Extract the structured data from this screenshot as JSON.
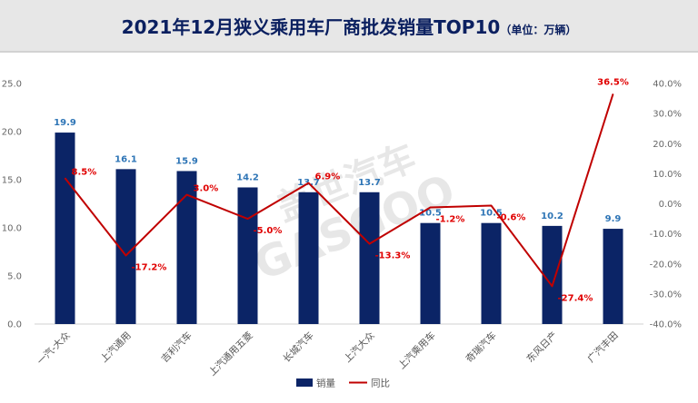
{
  "title": "2021年12月狭义乘用车厂商批发销量TOP10",
  "unit": "（单位：万辆）",
  "watermark": {
    "cn": "盖世汽车",
    "en": "GASGOO"
  },
  "colors": {
    "bar": "#0b2466",
    "line": "#c00000",
    "bar_label": "#2e75b6",
    "line_label": "#e00000"
  },
  "chart_data": {
    "type": "bar",
    "categories": [
      "一汽-大众",
      "上汽通用",
      "吉利汽车",
      "上汽通用五菱",
      "长城汽车",
      "上汽大众",
      "上汽乘用车",
      "奇瑞汽车",
      "东风日产",
      "广汽丰田"
    ],
    "series": [
      {
        "name": "销量",
        "type": "bar",
        "axis": "left",
        "values": [
          19.9,
          16.1,
          15.9,
          14.2,
          13.7,
          13.7,
          10.5,
          10.5,
          10.2,
          9.9
        ],
        "labels": [
          "19.9",
          "16.1",
          "15.9",
          "14.2",
          "13.7",
          "13.7",
          "10.5",
          "10.5",
          "10.2",
          "9.9"
        ]
      },
      {
        "name": "同比",
        "type": "line",
        "axis": "right",
        "values": [
          8.5,
          -17.2,
          3.0,
          -5.0,
          6.9,
          -13.3,
          -1.2,
          -0.6,
          -27.4,
          36.5
        ],
        "labels": [
          "8.5%",
          "-17.2%",
          "3.0%",
          "-5.0%",
          "6.9%",
          "-13.3%",
          "-1.2%",
          "-0.6%",
          "-27.4%",
          "36.5%"
        ]
      }
    ],
    "y_left": {
      "min": 0,
      "max": 25,
      "ticks": [
        "0.0",
        "5.0",
        "10.0",
        "15.0",
        "20.0",
        "25.0"
      ]
    },
    "y_right": {
      "min": -40,
      "max": 40,
      "ticks": [
        "-40.0%",
        "-30.0%",
        "-20.0%",
        "-10.0%",
        "0.0%",
        "10.0%",
        "20.0%",
        "30.0%",
        "40.0%"
      ]
    },
    "grid": false,
    "legend": {
      "position": "bottom",
      "items": [
        "销量",
        "同比"
      ]
    }
  }
}
